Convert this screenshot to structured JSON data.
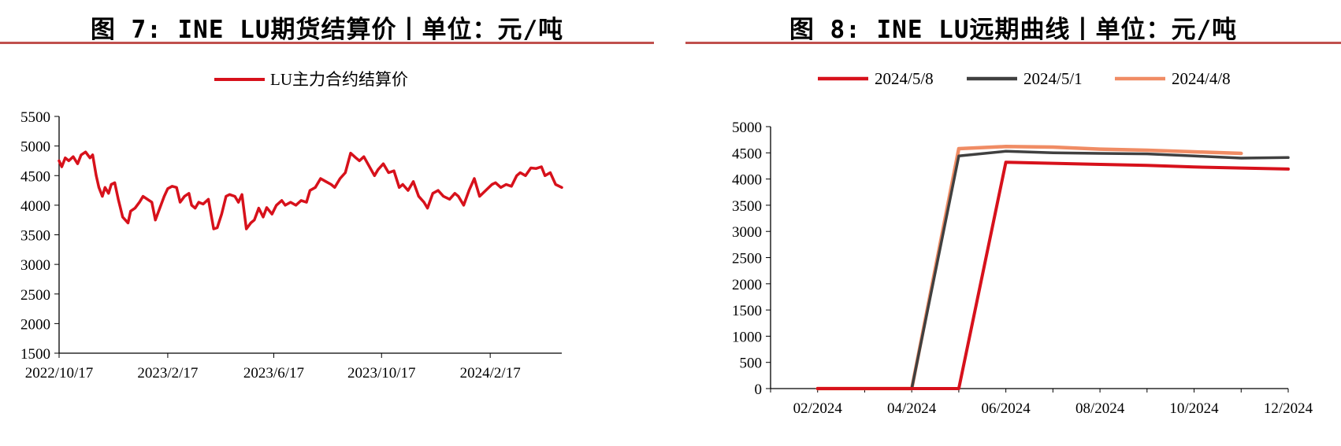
{
  "chart_data": [
    {
      "type": "line",
      "title": "图 7: INE LU期货结算价丨单位：元/吨",
      "xlabel": "",
      "ylabel": "",
      "ylim": [
        1500,
        5500
      ],
      "yticks": [
        "1500",
        "2000",
        "2500",
        "3000",
        "3500",
        "4000",
        "4500",
        "5000",
        "5500"
      ],
      "xticks": [
        "2022/10/17",
        "2023/2/17",
        "2023/6/17",
        "2023/10/17",
        "2024/2/17"
      ],
      "x_range": [
        "2022-10-17",
        "2024-05-08"
      ],
      "grid": false,
      "legend_position": "top-center",
      "series": [
        {
          "name": "LU主力合约结算价",
          "color": "#d7111b",
          "x": [
            "2022-10-17",
            "2022-10-20",
            "2022-10-24",
            "2022-10-28",
            "2022-11-02",
            "2022-11-07",
            "2022-11-11",
            "2022-11-16",
            "2022-11-21",
            "2022-11-24",
            "2022-11-28",
            "2022-12-01",
            "2022-12-05",
            "2022-12-08",
            "2022-12-12",
            "2022-12-15",
            "2022-12-19",
            "2022-12-23",
            "2022-12-28",
            "2023-01-03",
            "2023-01-06",
            "2023-01-11",
            "2023-01-16",
            "2023-01-20",
            "2023-01-30",
            "2023-02-03",
            "2023-02-08",
            "2023-02-13",
            "2023-02-17",
            "2023-02-22",
            "2023-02-27",
            "2023-03-03",
            "2023-03-08",
            "2023-03-13",
            "2023-03-16",
            "2023-03-20",
            "2023-03-24",
            "2023-03-29",
            "2023-04-04",
            "2023-04-10",
            "2023-04-14",
            "2023-04-19",
            "2023-04-24",
            "2023-04-28",
            "2023-05-04",
            "2023-05-08",
            "2023-05-12",
            "2023-05-17",
            "2023-05-22",
            "2023-05-26",
            "2023-05-31",
            "2023-06-05",
            "2023-06-09",
            "2023-06-15",
            "2023-06-20",
            "2023-06-26",
            "2023-06-30",
            "2023-07-06",
            "2023-07-12",
            "2023-07-18",
            "2023-07-24",
            "2023-07-28",
            "2023-08-03",
            "2023-08-09",
            "2023-08-15",
            "2023-08-21",
            "2023-08-25",
            "2023-08-31",
            "2023-09-06",
            "2023-09-12",
            "2023-09-18",
            "2023-09-22",
            "2023-09-27",
            "2023-10-09",
            "2023-10-13",
            "2023-10-19",
            "2023-10-25",
            "2023-10-31",
            "2023-11-06",
            "2023-11-10",
            "2023-11-16",
            "2023-11-22",
            "2023-11-28",
            "2023-12-04",
            "2023-12-08",
            "2023-12-14",
            "2023-12-20",
            "2023-12-26",
            "2024-01-02",
            "2024-01-08",
            "2024-01-12",
            "2024-01-18",
            "2024-01-24",
            "2024-01-30",
            "2024-02-05",
            "2024-02-19",
            "2024-02-23",
            "2024-02-29",
            "2024-03-06",
            "2024-03-12",
            "2024-03-18",
            "2024-03-22",
            "2024-03-28",
            "2024-04-03",
            "2024-04-09",
            "2024-04-15",
            "2024-04-19",
            "2024-04-25",
            "2024-05-01",
            "2024-05-08"
          ],
          "values": [
            4750,
            4650,
            4800,
            4750,
            4820,
            4700,
            4850,
            4900,
            4800,
            4850,
            4500,
            4300,
            4150,
            4300,
            4200,
            4350,
            4380,
            4100,
            3800,
            3700,
            3900,
            3950,
            4050,
            4150,
            4050,
            3750,
            3950,
            4150,
            4280,
            4320,
            4300,
            4050,
            4150,
            4200,
            4000,
            3950,
            4050,
            4020,
            4100,
            3600,
            3620,
            3850,
            4150,
            4180,
            4150,
            4050,
            4180,
            3600,
            3700,
            3750,
            3950,
            3800,
            3960,
            3850,
            4000,
            4080,
            4000,
            4050,
            4000,
            4080,
            4050,
            4250,
            4300,
            4450,
            4400,
            4350,
            4300,
            4450,
            4550,
            4880,
            4800,
            4750,
            4820,
            4500,
            4600,
            4700,
            4550,
            4580,
            4300,
            4350,
            4250,
            4400,
            4150,
            4050,
            3950,
            4200,
            4250,
            4150,
            4100,
            4200,
            4150,
            4000,
            4250,
            4450,
            4150,
            4350,
            4380,
            4300,
            4350,
            4320,
            4500,
            4550,
            4500,
            4630,
            4620,
            4650,
            4500,
            4550,
            4350,
            4300
          ]
        }
      ]
    },
    {
      "type": "line",
      "title": "图 8: INE LU远期曲线丨单位：元/吨",
      "xlabel": "",
      "ylabel": "",
      "ylim": [
        0,
        5000
      ],
      "yticks": [
        "0",
        "500",
        "1000",
        "1500",
        "2000",
        "2500",
        "3000",
        "3500",
        "4000",
        "4500",
        "5000"
      ],
      "xticks": [
        "02/2024",
        "04/2024",
        "06/2024",
        "08/2024",
        "10/2024",
        "12/2024"
      ],
      "x_range": [
        "2024-01",
        "2024-12"
      ],
      "grid": false,
      "legend_position": "top-center",
      "series": [
        {
          "name": "2024/5/8",
          "color": "#d7111b",
          "x": [
            "2024-02",
            "2024-03",
            "2024-04",
            "2024-05",
            "2024-06",
            "2024-07",
            "2024-08",
            "2024-09",
            "2024-10",
            "2024-11",
            "2024-12"
          ],
          "values": [
            0,
            0,
            0,
            0,
            4320,
            4300,
            4280,
            4260,
            4230,
            4210,
            4190
          ]
        },
        {
          "name": "2024/5/1",
          "color": "#404040",
          "x": [
            "2024-02",
            "2024-03",
            "2024-04",
            "2024-05",
            "2024-06",
            "2024-07",
            "2024-08",
            "2024-09",
            "2024-10",
            "2024-11",
            "2024-12"
          ],
          "values": [
            0,
            0,
            0,
            4440,
            4530,
            4500,
            4490,
            4480,
            4440,
            4400,
            4410
          ]
        },
        {
          "name": "2024/4/8",
          "color": "#f08c64",
          "x": [
            "2024-02",
            "2024-03",
            "2024-04",
            "2024-05",
            "2024-06",
            "2024-07",
            "2024-08",
            "2024-09",
            "2024-10",
            "2024-11"
          ],
          "values": [
            0,
            0,
            0,
            4580,
            4620,
            4610,
            4570,
            4550,
            4520,
            4490
          ]
        }
      ]
    }
  ]
}
